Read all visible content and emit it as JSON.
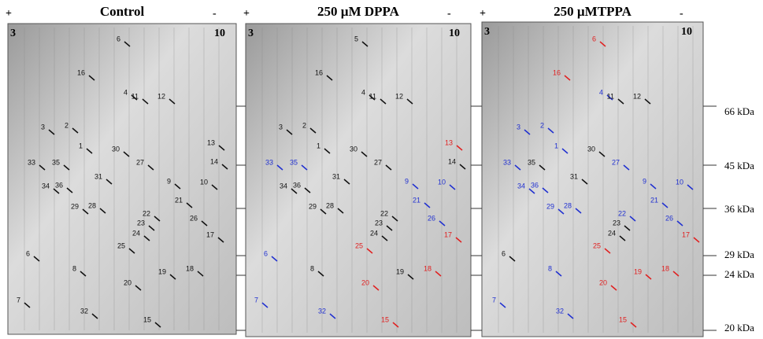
{
  "panels": [
    {
      "title": "Control",
      "plus": "+",
      "minus": "-",
      "ph_low": "3",
      "ph_high": "10",
      "spots": [
        "6",
        "16",
        "4",
        "11",
        "12",
        "3",
        "2",
        "1",
        "13",
        "30",
        "33",
        "35",
        "27",
        "14",
        "31",
        "34",
        "36",
        "9",
        "10",
        "29",
        "28",
        "21",
        "22",
        "26",
        "23",
        "24",
        "17",
        "25",
        "6",
        "8",
        "19",
        "18",
        "20",
        "7",
        "32",
        "15"
      ],
      "spot_colors": [
        "#111",
        "#111",
        "#111",
        "#111",
        "#111",
        "#111",
        "#111",
        "#111",
        "#111",
        "#111",
        "#111",
        "#111",
        "#111",
        "#111",
        "#111",
        "#111",
        "#111",
        "#111",
        "#111",
        "#111",
        "#111",
        "#111",
        "#111",
        "#111",
        "#111",
        "#111",
        "#111",
        "#111",
        "#111",
        "#111",
        "#111",
        "#111",
        "#111",
        "#111",
        "#111",
        "#111"
      ]
    },
    {
      "title": "250 µM DPPA",
      "plus": "+",
      "minus": "-",
      "ph_low": "3",
      "ph_high": "10",
      "spots": [
        "5",
        "16",
        "4",
        "11",
        "12",
        "3",
        "2",
        "1",
        "13",
        "30",
        "33",
        "35",
        "27",
        "14",
        "31",
        "34",
        "36",
        "9",
        "10",
        "29",
        "28",
        "21",
        "22",
        "26",
        "23",
        "24",
        "17",
        "25",
        "6",
        "8",
        "19",
        "18",
        "20",
        "7",
        "32",
        "15"
      ],
      "spot_colors": [
        "#111",
        "#111",
        "#111",
        "#111",
        "#111",
        "#111",
        "#111",
        "#111",
        "#e02020",
        "#111",
        "#2030d0",
        "#2030d0",
        "#111",
        "#111",
        "#111",
        "#111",
        "#111",
        "#2030d0",
        "#2030d0",
        "#111",
        "#111",
        "#2030d0",
        "#111",
        "#2030d0",
        "#111",
        "#111",
        "#e02020",
        "#e02020",
        "#2030d0",
        "#111",
        "#111",
        "#e02020",
        "#e02020",
        "#2030d0",
        "#2030d0",
        "#e02020"
      ]
    },
    {
      "title": "250 µMTPPA",
      "plus": "+",
      "minus": "-",
      "ph_low": "3",
      "ph_high": "10",
      "spots": [
        "6",
        "16",
        "4",
        "11",
        "12",
        "3",
        "2",
        "1",
        "30",
        "33",
        "35",
        "27",
        "31",
        "34",
        "36",
        "9",
        "10",
        "29",
        "28",
        "21",
        "22",
        "26",
        "23",
        "24",
        "17",
        "25",
        "6",
        "8",
        "19",
        "18",
        "20",
        "7",
        "32",
        "15"
      ],
      "spot_colors": [
        "#e02020",
        "#e02020",
        "#2030d0",
        "#111",
        "#111",
        "#2030d0",
        "#2030d0",
        "#2030d0",
        "#111",
        "#2030d0",
        "#111",
        "#2030d0",
        "#111",
        "#2030d0",
        "#2030d0",
        "#2030d0",
        "#2030d0",
        "#2030d0",
        "#2030d0",
        "#2030d0",
        "#2030d0",
        "#2030d0",
        "#111",
        "#111",
        "#e02020",
        "#e02020",
        "#111",
        "#2030d0",
        "#e02020",
        "#e02020",
        "#e02020",
        "#2030d0",
        "#2030d0",
        "#e02020"
      ]
    }
  ],
  "markers": [
    "66 kDa",
    "45 kDa",
    "36 kDa",
    "29 kDa",
    "24 kDa",
    "20 kDa"
  ]
}
